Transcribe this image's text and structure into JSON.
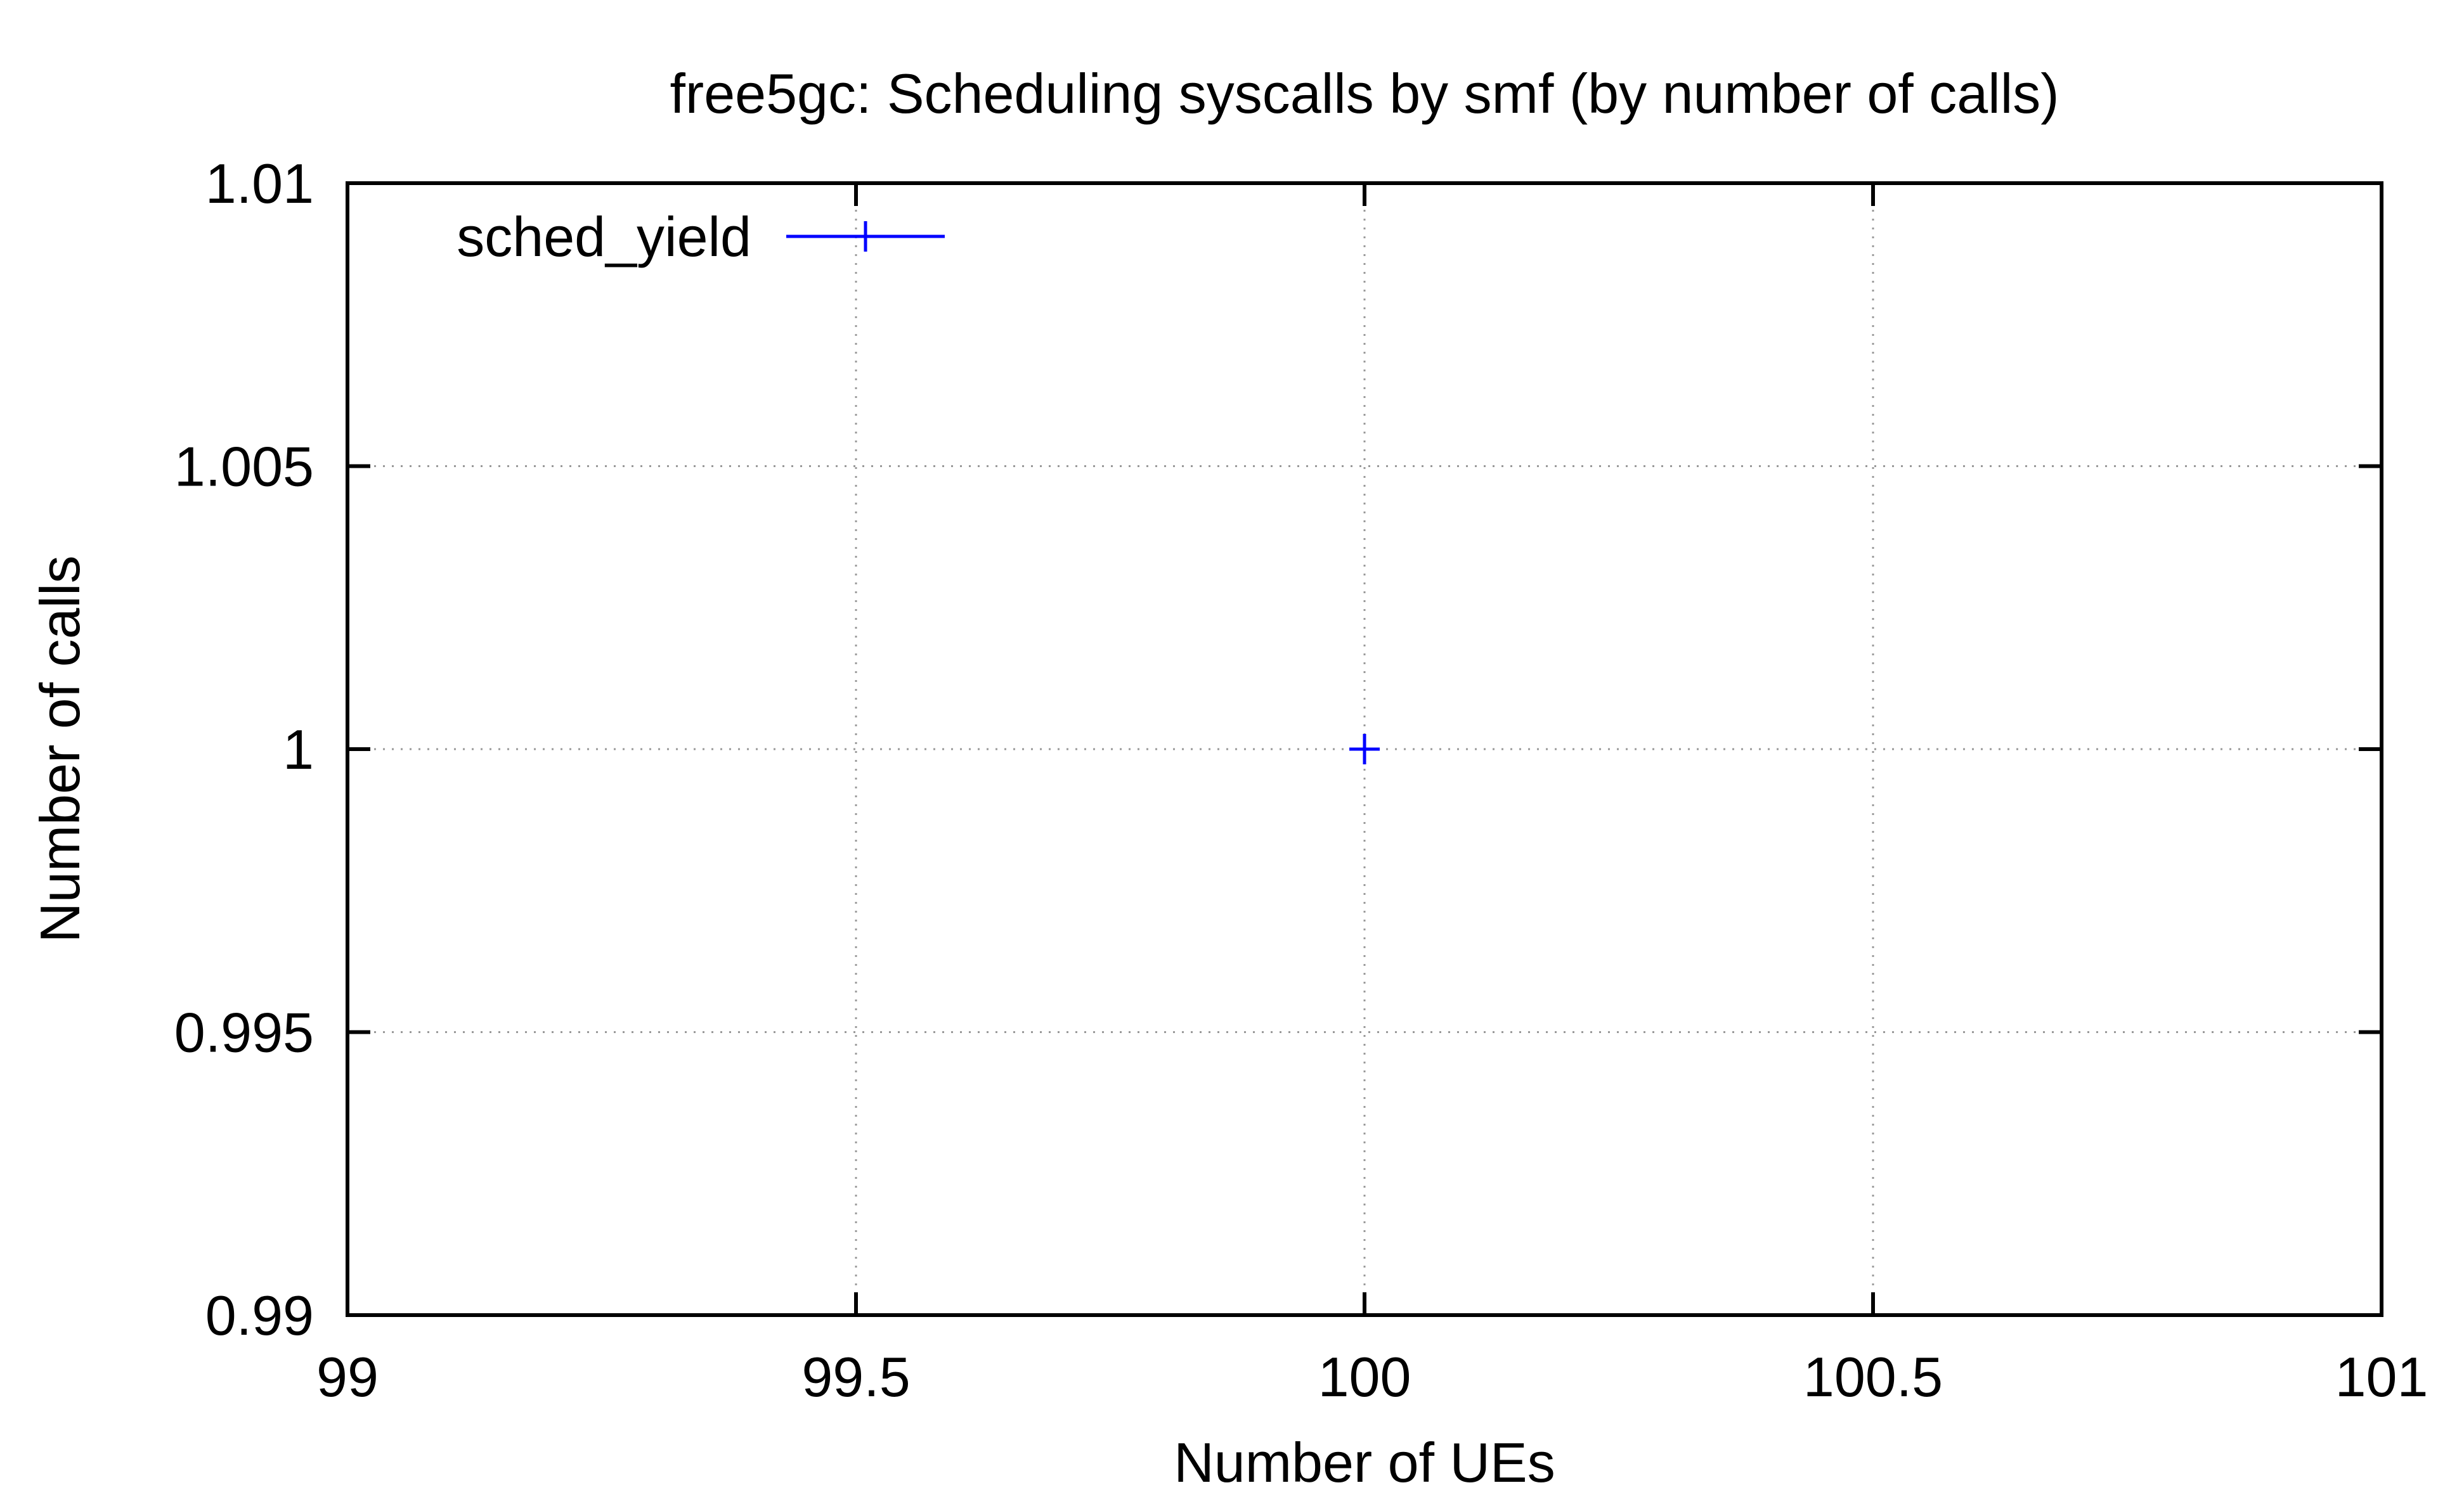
{
  "chart_data": {
    "type": "scatter",
    "title": "free5gc: Scheduling syscalls by smf (by number of calls)",
    "xlabel": "Number of UEs",
    "ylabel": "Number of calls",
    "xlim": [
      99,
      101
    ],
    "ylim": [
      0.99,
      1.01
    ],
    "x_ticks": [
      99,
      99.5,
      100,
      100.5,
      101
    ],
    "x_tick_labels": [
      "99",
      "99.5",
      "100",
      "100.5",
      "101"
    ],
    "y_ticks": [
      0.99,
      0.995,
      1,
      1.005,
      1.01
    ],
    "y_tick_labels": [
      "0.99",
      "0.995",
      "1",
      "1.005",
      "1.01"
    ],
    "grid": true,
    "legend_position": "top-left",
    "series": [
      {
        "name": "sched_yield",
        "color": "#0000ff",
        "marker": "plus",
        "points": [
          {
            "x": 100,
            "y": 1
          }
        ]
      }
    ]
  }
}
